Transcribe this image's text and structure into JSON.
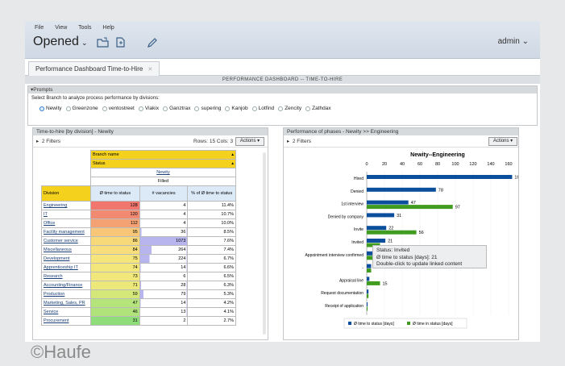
{
  "menu": {
    "file": "File",
    "view": "View",
    "tools": "Tools",
    "help": "Help"
  },
  "opened_label": "Opened",
  "user": "admin",
  "tab_label": "Performance Dashboard Time-to-Hire",
  "dashboard_title": "PERFORMANCE DASHBOARD -- TIME-TO-HIRE",
  "prompts": {
    "title": "Prompts",
    "label": "Select Branch to analyze process performance by divisions:",
    "options": [
      "Newity",
      "Greenzone",
      "ventostreet",
      "Viakix",
      "Ganztrax",
      "supering",
      "Kanjob",
      "Lotfind",
      "Zencity",
      "Zathdax"
    ],
    "selected": "Newity"
  },
  "left_panel": {
    "title": "Time-to-hire [by division] - Newity",
    "filters": "2 Filters",
    "rowscols": "Rows: 15  Cols: 3",
    "actions": "Actions",
    "branch_header": "Branch name",
    "status_header": "Status",
    "branch_value": "Newity",
    "status_value": "Filled",
    "columns": [
      "Division",
      "Ø time to status",
      "# vacancies",
      "% of Ø time to status"
    ],
    "rows": [
      {
        "division": "Engineering",
        "time": "128",
        "vac": "4",
        "pct": "11.4%",
        "color": "#f0766e",
        "bar": 0
      },
      {
        "division": "IT",
        "time": "120",
        "vac": "4",
        "pct": "10.7%",
        "color": "#f28a72",
        "bar": 0
      },
      {
        "division": "Office",
        "time": "112",
        "vac": "4",
        "pct": "10.0%",
        "color": "#f4a173",
        "bar": 0
      },
      {
        "division": "Facility management",
        "time": "95",
        "vac": "36",
        "pct": "8.5%",
        "color": "#f7c777",
        "bar": 0.034
      },
      {
        "division": "Customer service",
        "time": "86",
        "vac": "1073",
        "pct": "7.6%",
        "color": "#f8d97a",
        "bar": 1
      },
      {
        "division": "Miscellaneous",
        "time": "84",
        "vac": "264",
        "pct": "7.4%",
        "color": "#f8dd7b",
        "bar": 0.246
      },
      {
        "division": "Development",
        "time": "75",
        "vac": "224",
        "pct": "6.7%",
        "color": "#f5e57a",
        "bar": 0.209
      },
      {
        "division": "Apprenticeship IT",
        "time": "74",
        "vac": "14",
        "pct": "6.6%",
        "color": "#f3e67a",
        "bar": 0.013
      },
      {
        "division": "Research",
        "time": "73",
        "vac": "6",
        "pct": "6.5%",
        "color": "#f1e77a",
        "bar": 0
      },
      {
        "division": "Accounting/Finance",
        "time": "71",
        "vac": "28",
        "pct": "6.3%",
        "color": "#ece87a",
        "bar": 0.026
      },
      {
        "division": "Production",
        "time": "59",
        "vac": "79",
        "pct": "5.3%",
        "color": "#d4e87a",
        "bar": 0.074
      },
      {
        "division": "Marketing, Sales, PR",
        "time": "47",
        "vac": "14",
        "pct": "4.2%",
        "color": "#b5e47a",
        "bar": 0.013
      },
      {
        "division": "Service",
        "time": "46",
        "vac": "13",
        "pct": "4.1%",
        "color": "#b0e37a",
        "bar": 0.012
      },
      {
        "division": "Procurement",
        "time": "31",
        "vac": "2",
        "pct": "2.7%",
        "color": "#8fdd78",
        "bar": 0
      }
    ]
  },
  "right_panel": {
    "title": "Performance of phases - Newity >> Engineering",
    "filters": "2 Filters",
    "actions": "Actions",
    "tooltip": {
      "l1": "Status: Invited",
      "l2": "Ø time to status [days]: 21",
      "l3": "Double-click to update linked content"
    }
  },
  "chart_data": {
    "type": "bar",
    "orientation": "horizontal",
    "title": "Newity--Engineering",
    "xlim": [
      0,
      160
    ],
    "ticks": [
      0,
      20,
      40,
      60,
      80,
      100,
      120,
      140,
      160
    ],
    "categories": [
      "Hired",
      "Denied",
      "1st interview",
      "Denied by company",
      "Invite",
      "Invited",
      "Appointment interview confirmed",
      "-",
      "Appraisal line",
      "Request documentation",
      "Receipt of application"
    ],
    "series": [
      {
        "name": "Ø time to status [days]",
        "color": "#0b4f9c",
        "values": [
          164,
          78,
          47,
          31,
          22,
          21,
          18,
          5,
          3,
          2,
          1
        ]
      },
      {
        "name": "Ø time in status [days]",
        "color": "#3f9c1f",
        "values": [
          null,
          null,
          97,
          null,
          56,
          15,
          10,
          5,
          15,
          2,
          1
        ]
      }
    ],
    "labels_primary": [
      "164",
      "78",
      "47",
      "31",
      "22",
      "21",
      "",
      "5",
      "",
      "",
      ""
    ],
    "labels_secondary": [
      "",
      "",
      "97",
      "",
      "56",
      "",
      "",
      "",
      "15",
      "",
      ""
    ],
    "legend": "bottom"
  },
  "copyright": "©Haufe"
}
